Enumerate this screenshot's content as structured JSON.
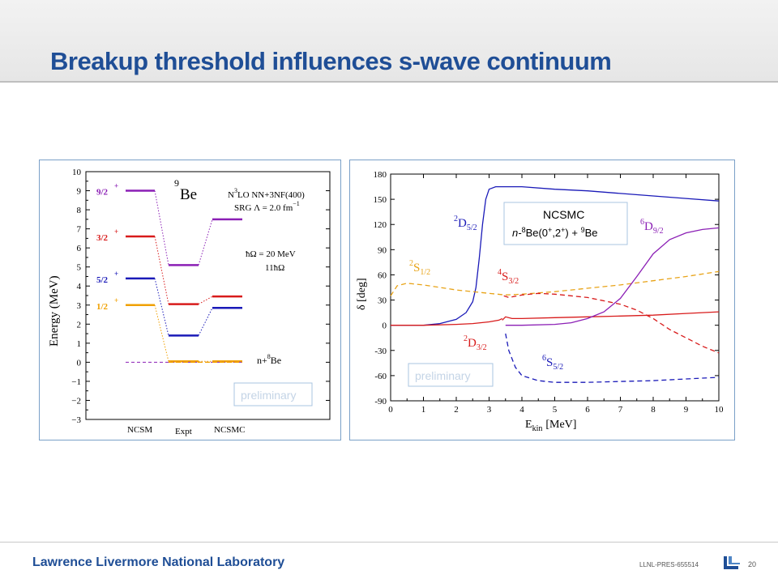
{
  "slide": {
    "title": "Breakup threshold influences s-wave continuum",
    "footer_org": "Lawrence Livermore National Laboratory",
    "footer_code": "LLNL-PRES-655514",
    "page_number": "20",
    "accent_color": "#1f4e96"
  },
  "chart_data": [
    {
      "type": "level-scheme",
      "ylabel": "Energy (MeV)",
      "ylim": [
        -3,
        10
      ],
      "yticks": [
        "10",
        "9",
        "8",
        "7",
        "6",
        "5",
        "4",
        "3",
        "2",
        "1",
        "0",
        "−1",
        "−2",
        "−3"
      ],
      "columns": [
        "NCSM",
        "Expt",
        "NCSMC"
      ],
      "nucleus": {
        "mass": "9",
        "symbol": "Be"
      },
      "annotations": {
        "interaction_line1": "N",
        "interaction_sup": "3",
        "interaction_line1_rest": "LO NN+3NF(400)",
        "srg_line": "SRG Λ = 2.0 fm",
        "srg_exp": "−1",
        "hw_line": "ħΩ = 20 MeV",
        "nmax_line": "11ħΩ",
        "threshold": "n+",
        "threshold_mass": "8",
        "threshold_symbol": "Be",
        "preliminary": "preliminary"
      },
      "levels": [
        {
          "label": "9/2",
          "parity": "+",
          "color": "#8b1fb5",
          "ncsm": 9.0,
          "expt": 5.1,
          "ncsmc": 7.5
        },
        {
          "label": "3/2",
          "parity": "+",
          "color": "#d81b1b",
          "ncsm": 6.6,
          "expt": 3.05,
          "ncsmc": 3.45
        },
        {
          "label": "5/2",
          "parity": "+",
          "color": "#1a1ab8",
          "ncsm": 4.4,
          "expt": 1.4,
          "ncsmc": 2.85
        },
        {
          "label": "1/2",
          "parity": "+",
          "color": "#f0a000",
          "ncsm": 3.0,
          "expt": 0.05,
          "ncsmc": 0.05
        }
      ],
      "threshold_energy": 0.0
    },
    {
      "type": "line",
      "xlabel": "E",
      "xlabel_sub": "kin",
      "xlabel_unit": "[MeV]",
      "ylabel": "δ [deg]",
      "xlim": [
        0,
        10
      ],
      "ylim": [
        -90,
        180
      ],
      "xticks": [
        0,
        1,
        2,
        3,
        4,
        5,
        6,
        7,
        8,
        9,
        10
      ],
      "yticks": [
        180,
        150,
        120,
        90,
        60,
        30,
        0,
        -30,
        -60,
        -90
      ],
      "legend_title": "NCSMC",
      "legend_text": "n-",
      "legend_mass": "8",
      "legend_mid": "Be(0",
      "legend_sup1": "+",
      "legend_mid2": ",2",
      "legend_sup2": "+",
      "legend_mid3": ") + ",
      "legend_mass2": "9",
      "legend_end": "Be",
      "preliminary": "preliminary",
      "series": [
        {
          "name": "2D5/2",
          "spin": "2",
          "letter": "D",
          "sub": "5/2",
          "color": "#1a1ab8",
          "dash": false,
          "x": [
            0,
            1,
            1.5,
            2,
            2.3,
            2.5,
            2.6,
            2.7,
            2.8,
            2.9,
            3.0,
            3.2,
            4,
            5,
            6,
            7,
            8,
            9,
            10
          ],
          "y": [
            0,
            0,
            2,
            7,
            15,
            28,
            45,
            80,
            120,
            150,
            162,
            165,
            165,
            162,
            160,
            157,
            154,
            151,
            148
          ]
        },
        {
          "name": "2S1/2",
          "spin": "2",
          "letter": "S",
          "sub": "1/2",
          "color": "#e8a317",
          "dash": true,
          "x": [
            0,
            0.2,
            0.5,
            1,
            1.5,
            2,
            2.5,
            3,
            3.5,
            4,
            5,
            6,
            7,
            8,
            9,
            10
          ],
          "y": [
            35,
            47,
            50,
            48,
            45,
            42,
            40,
            38,
            36,
            37,
            40,
            44,
            48,
            53,
            58,
            64
          ]
        },
        {
          "name": "4S3/2",
          "spin": "4",
          "letter": "S",
          "sub": "3/2",
          "color": "#d81b1b",
          "dash": false,
          "x": [
            3.4,
            3.5,
            3.7,
            4,
            5,
            6,
            7,
            8,
            9,
            10
          ],
          "y": [
            6,
            10,
            8,
            8,
            9,
            10,
            11,
            12,
            14,
            16
          ]
        },
        {
          "name": "2D3/2",
          "spin": "2",
          "letter": "D",
          "sub": "3/2",
          "color": "#d81b1b",
          "dash": false,
          "x": [
            0,
            1,
            2,
            2.5,
            3,
            3.3,
            3.4
          ],
          "y": [
            0,
            0,
            1,
            2,
            4,
            6,
            8
          ]
        },
        {
          "name": "4S3/2 dashed",
          "spin": "",
          "letter": "",
          "sub": "",
          "color": "#d81b1b",
          "dash": true,
          "x": [
            3.45,
            3.6,
            4,
            4.5,
            5,
            6,
            7,
            7.5,
            8,
            8.5,
            9,
            9.5,
            10
          ],
          "y": [
            35,
            33,
            36,
            38,
            37,
            33,
            25,
            18,
            8,
            -5,
            -15,
            -25,
            -33
          ]
        },
        {
          "name": "6S5/2",
          "spin": "6",
          "letter": "S",
          "sub": "5/2",
          "color": "#1a1ab8",
          "dash": true,
          "x": [
            3.5,
            3.6,
            3.8,
            4,
            4.5,
            5,
            6,
            7,
            8,
            9,
            10
          ],
          "y": [
            -10,
            -30,
            -50,
            -60,
            -66,
            -68,
            -68,
            -67,
            -66,
            -64,
            -62
          ]
        },
        {
          "name": "6D9/2",
          "spin": "6",
          "letter": "D",
          "sub": "9/2",
          "color": "#8b1fb5",
          "dash": false,
          "x": [
            3.5,
            4,
            5,
            5.5,
            6,
            6.5,
            7,
            7.5,
            8,
            8.5,
            9,
            9.5,
            10
          ],
          "y": [
            0,
            0,
            1,
            3,
            8,
            16,
            32,
            58,
            85,
            102,
            110,
            114,
            116
          ]
        }
      ]
    }
  ]
}
